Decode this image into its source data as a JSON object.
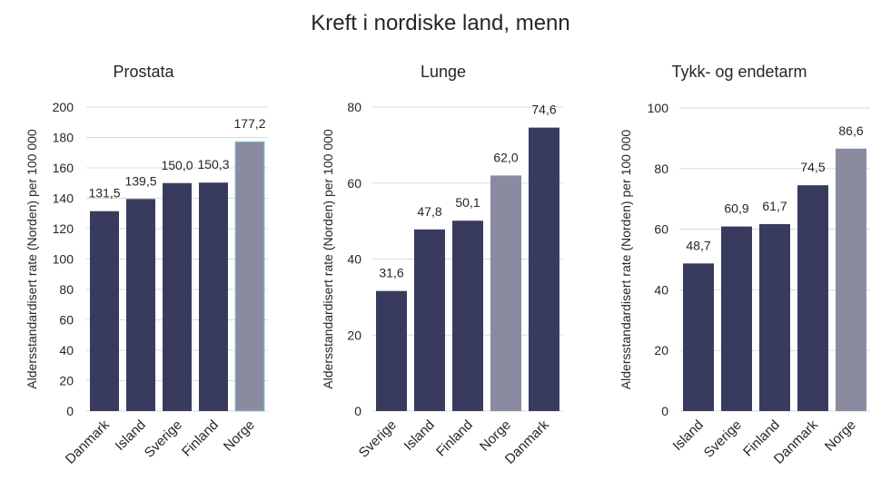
{
  "title": "Kreft i nordiske land, menn",
  "colors": {
    "bar": "#393b5e",
    "highlight": "#8a8ba1",
    "grid": "#d9d9d9",
    "highlight_outline": "#7fcfd6"
  },
  "chart_data": [
    {
      "type": "bar",
      "title": "Prostata",
      "ylabel": "Aldersstandardisert rate (Norden) per 100 000",
      "ylim": [
        0,
        200
      ],
      "yticks": [
        "0",
        "20",
        "40",
        "60",
        "80",
        "100",
        "120",
        "140",
        "160",
        "180",
        "200"
      ],
      "categories": [
        "Danmark",
        "Island",
        "Sverige",
        "Finland",
        "Norge"
      ],
      "values": [
        131.5,
        139.5,
        150.0,
        150.3,
        177.2
      ],
      "value_labels": [
        "131,5",
        "139,5",
        "150,0",
        "150,3",
        "177,2"
      ],
      "highlight": "Norge",
      "grid": true
    },
    {
      "type": "bar",
      "title": "Lunge",
      "ylabel": "Aldersstandardisert rate (Norden) per 100 000",
      "ylim": [
        0,
        80
      ],
      "yticks": [
        "0",
        "20",
        "40",
        "60",
        "80"
      ],
      "categories": [
        "Sverige",
        "Island",
        "Finland",
        "Norge",
        "Danmark"
      ],
      "values": [
        31.6,
        47.8,
        50.1,
        62.0,
        74.6
      ],
      "value_labels": [
        "31,6",
        "47,8",
        "50,1",
        "62,0",
        "74,6"
      ],
      "highlight": "Norge",
      "grid": true
    },
    {
      "type": "bar",
      "title": "Tykk- og endetarm",
      "ylabel": "Aldersstandardisert rate (Norden) per 100 000",
      "ylim": [
        0,
        100
      ],
      "yticks": [
        "0",
        "20",
        "40",
        "60",
        "80",
        "100"
      ],
      "categories": [
        "Island",
        "Sverige",
        "Finland",
        "Danmark",
        "Norge"
      ],
      "values": [
        48.7,
        60.9,
        61.7,
        74.5,
        86.6
      ],
      "value_labels": [
        "48,7",
        "60,9",
        "61,7",
        "74,5",
        "86,6"
      ],
      "highlight": "Norge",
      "grid": true
    }
  ]
}
